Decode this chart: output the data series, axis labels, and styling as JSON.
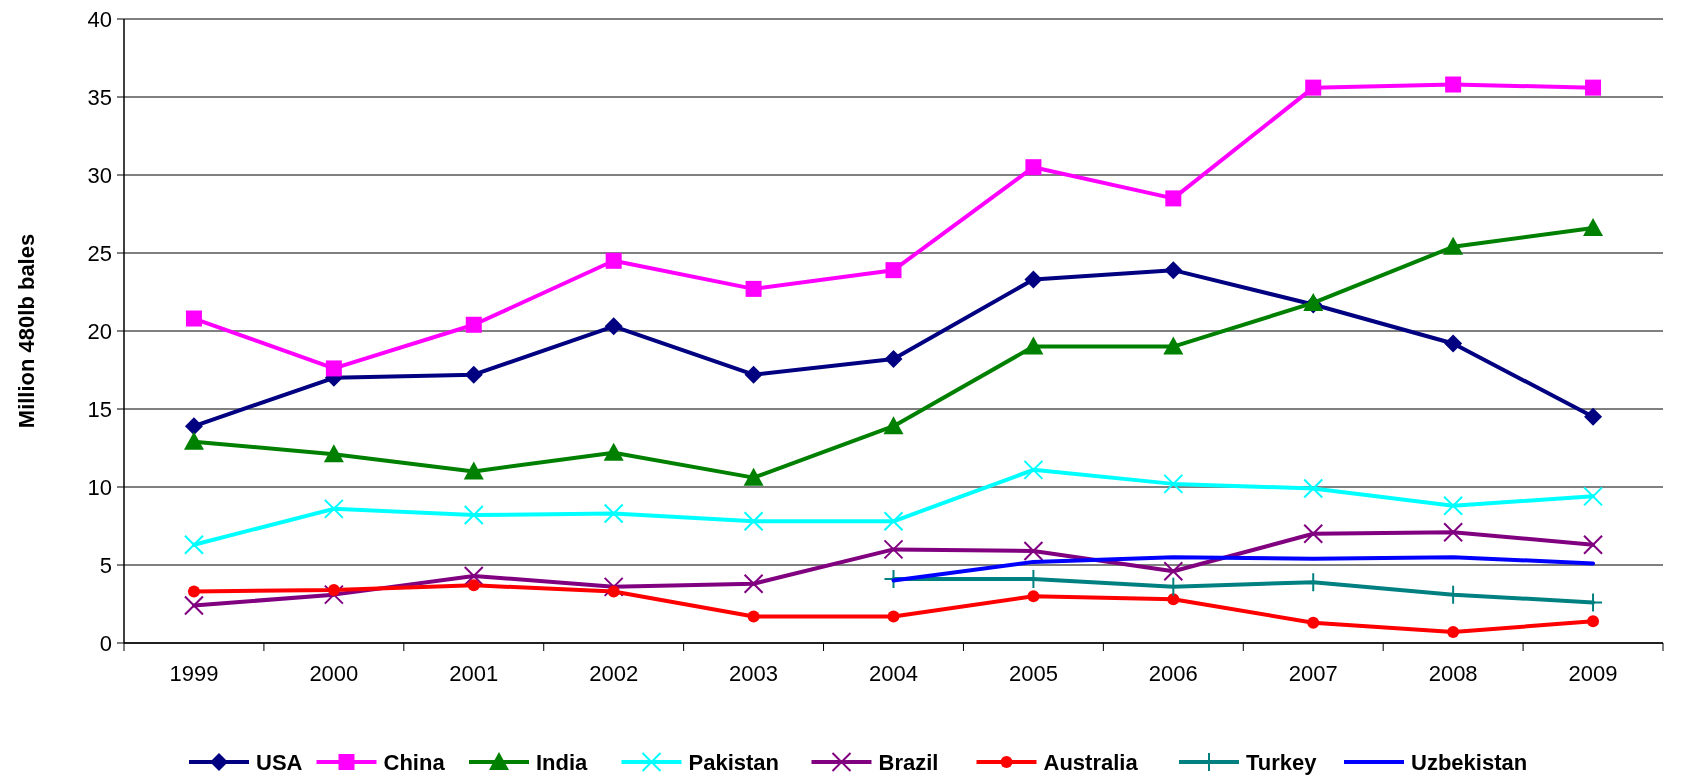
{
  "chart_data": {
    "type": "line",
    "ylabel": "Million 480lb bales",
    "categories": [
      "1999",
      "2000",
      "2001",
      "2002",
      "2003",
      "2004",
      "2005",
      "2006",
      "2007",
      "2008",
      "2009"
    ],
    "ylim": [
      0,
      40
    ],
    "yticks": [
      0,
      5,
      10,
      15,
      20,
      25,
      30,
      35,
      40
    ],
    "grid": "y",
    "legend": "bottom",
    "series": [
      {
        "name": "USA",
        "color": "#000080",
        "marker": "diamond",
        "values": [
          13.9,
          17.0,
          17.2,
          20.3,
          17.2,
          18.2,
          23.3,
          23.9,
          21.7,
          19.2,
          14.5
        ]
      },
      {
        "name": "China",
        "color": "#ff00ff",
        "marker": "square",
        "values": [
          20.8,
          17.6,
          20.4,
          24.5,
          22.7,
          23.9,
          30.5,
          28.5,
          35.6,
          35.8,
          35.6
        ]
      },
      {
        "name": "India",
        "color": "#008000",
        "marker": "triangle",
        "values": [
          12.9,
          12.1,
          11.0,
          12.2,
          10.6,
          13.9,
          19.0,
          19.0,
          21.8,
          25.4,
          26.6
        ]
      },
      {
        "name": "Pakistan",
        "color": "#00ffff",
        "marker": "cross",
        "values": [
          6.3,
          8.6,
          8.2,
          8.3,
          7.8,
          7.8,
          11.1,
          10.2,
          9.9,
          8.8,
          9.4
        ]
      },
      {
        "name": "Brazil",
        "color": "#800080",
        "marker": "cross",
        "values": [
          2.4,
          3.1,
          4.3,
          3.6,
          3.8,
          6.0,
          5.9,
          4.6,
          7.0,
          7.1,
          6.3
        ]
      },
      {
        "name": "Australia",
        "color": "#ff0000",
        "marker": "circle",
        "values": [
          3.3,
          3.4,
          3.7,
          3.3,
          1.7,
          1.7,
          3.0,
          2.8,
          1.3,
          0.7,
          1.4
        ]
      },
      {
        "name": "Turkey",
        "color": "#008080",
        "marker": "plus",
        "values": [
          null,
          null,
          null,
          null,
          null,
          4.1,
          4.1,
          3.6,
          3.9,
          3.1,
          2.6
        ]
      },
      {
        "name": "Uzbekistan",
        "color": "#0000ff",
        "marker": "none",
        "values": [
          null,
          null,
          null,
          null,
          null,
          4.0,
          5.2,
          5.5,
          5.4,
          5.5,
          5.1
        ]
      }
    ]
  }
}
